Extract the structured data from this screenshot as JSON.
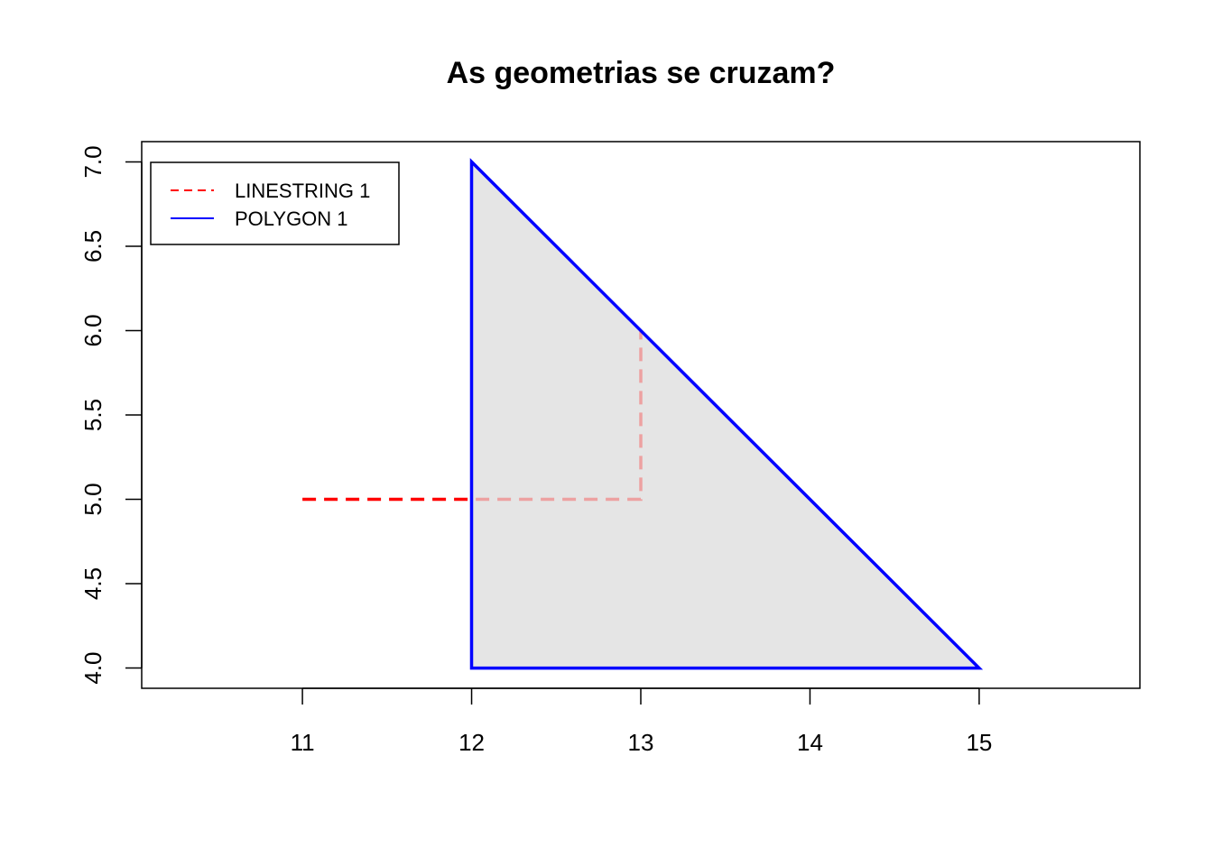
{
  "chart_data": {
    "type": "line",
    "title": "As geometrias se cruzam?",
    "xlabel": "",
    "ylabel": "",
    "xlim": [
      10.05,
      15.95
    ],
    "ylim": [
      3.88,
      7.12
    ],
    "x_ticks": [
      11,
      12,
      13,
      14,
      15
    ],
    "x_tick_labels": [
      "11",
      "12",
      "13",
      "14",
      "15"
    ],
    "y_ticks": [
      4.0,
      4.5,
      5.0,
      5.5,
      6.0,
      6.5,
      7.0
    ],
    "y_tick_labels": [
      "4.0",
      "4.5",
      "5.0",
      "5.5",
      "6.0",
      "6.5",
      "7.0"
    ],
    "grid": false,
    "legend_position": "top-left",
    "series": [
      {
        "name": "LINESTRING 1",
        "geometry": "linestring",
        "color": "#ff0000",
        "line_style": "dashed",
        "points": [
          [
            11,
            5
          ],
          [
            13,
            5
          ],
          [
            13,
            6
          ]
        ]
      },
      {
        "name": "POLYGON 1",
        "geometry": "polygon",
        "color": "#0000ff",
        "fill": "#e5e5e5",
        "fill_opacity": 0.7,
        "line_style": "solid",
        "points": [
          [
            12,
            4
          ],
          [
            12,
            7
          ],
          [
            15,
            4
          ],
          [
            12,
            4
          ]
        ]
      }
    ]
  }
}
